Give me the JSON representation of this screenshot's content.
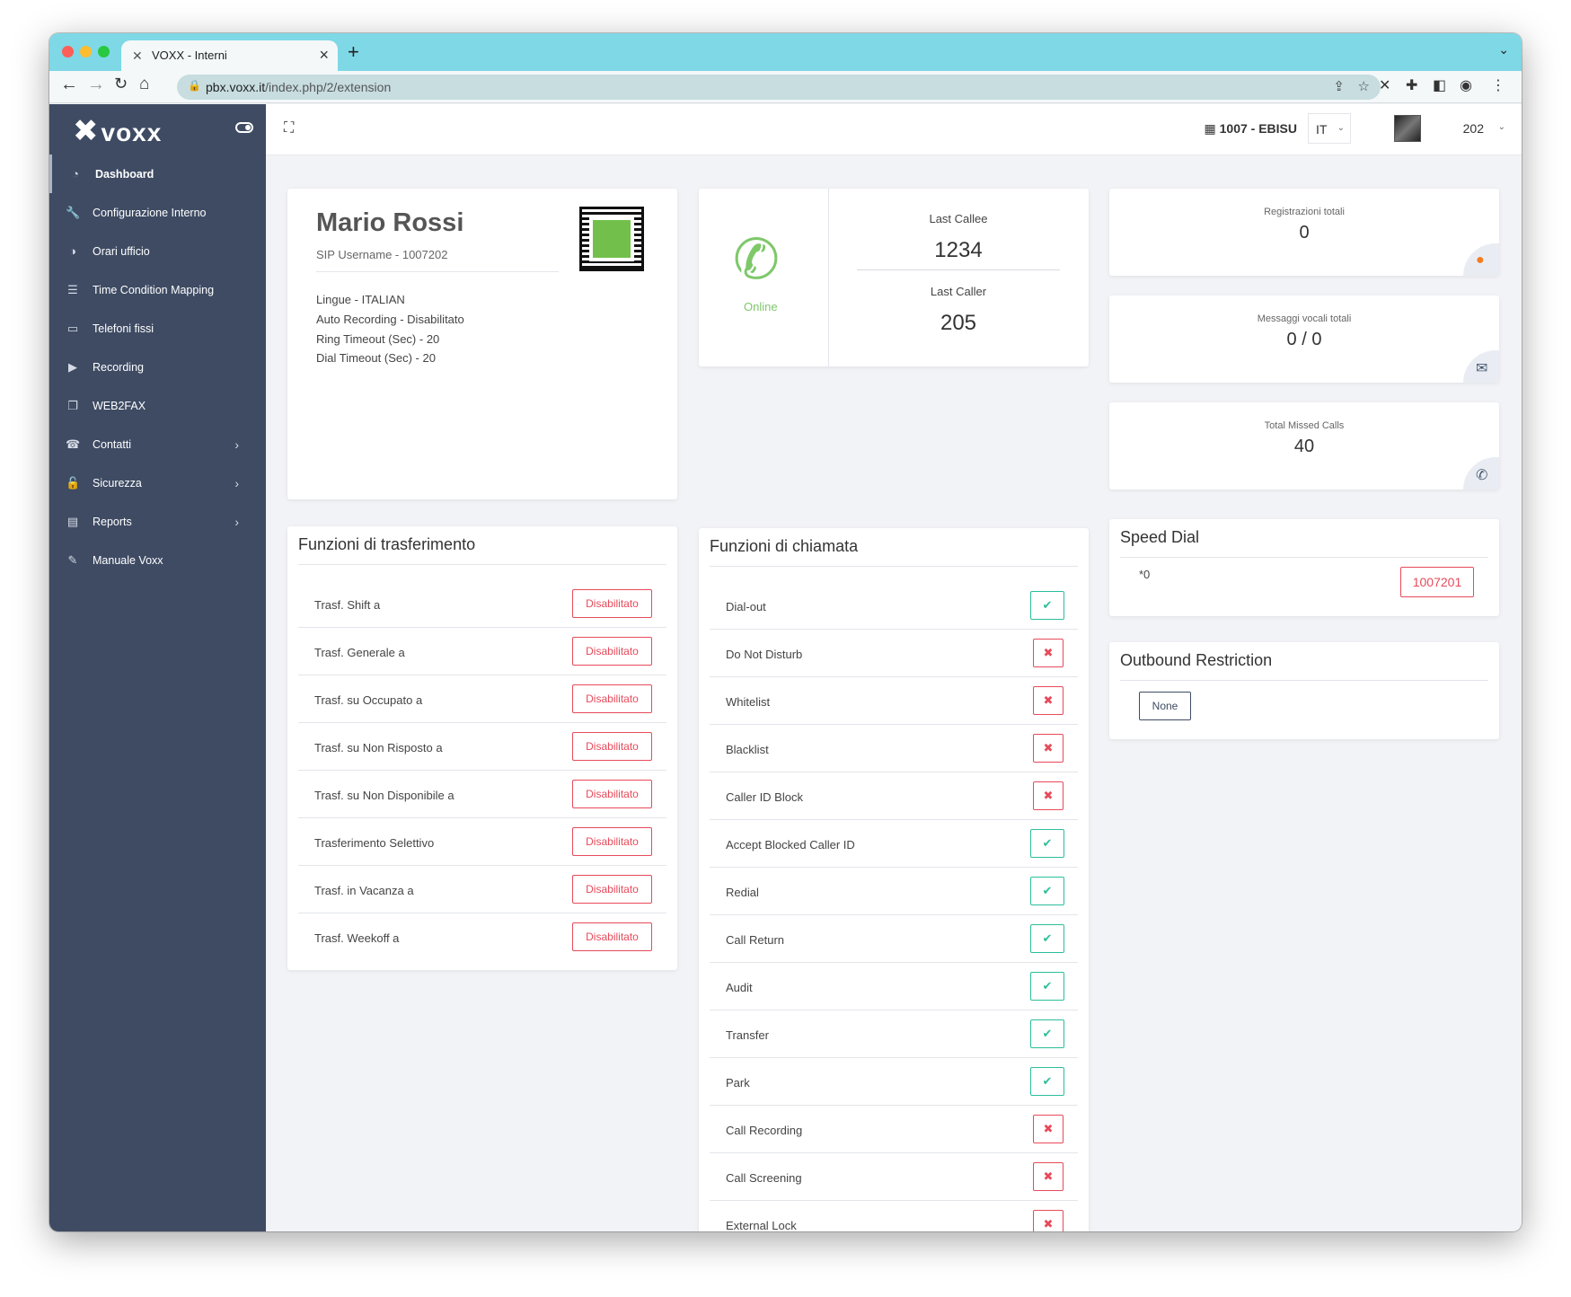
{
  "browser": {
    "tab_title": "VOXX - Interni",
    "url_domain": "pbx.voxx.it",
    "url_path": "/index.php/2/extension"
  },
  "sidebar": {
    "logo": "voxx",
    "items": [
      {
        "label": "Dashboard",
        "icon": "dashboard-icon"
      },
      {
        "label": "Configurazione Interno",
        "icon": "wrench-icon"
      },
      {
        "label": "Orari ufficio",
        "icon": "half-circle-icon"
      },
      {
        "label": "Time Condition Mapping",
        "icon": "list-icon"
      },
      {
        "label": "Telefoni fissi",
        "icon": "monitor-icon"
      },
      {
        "label": "Recording",
        "icon": "play-icon"
      },
      {
        "label": "WEB2FAX",
        "icon": "copy-icon"
      },
      {
        "label": "Contatti",
        "icon": "phone-square-icon"
      },
      {
        "label": "Sicurezza",
        "icon": "lock-icon"
      },
      {
        "label": "Reports",
        "icon": "file-icon"
      },
      {
        "label": "Manuale Voxx",
        "icon": "edit-icon"
      }
    ]
  },
  "header": {
    "company": "1007 - EBISU",
    "lang": "IT",
    "ext": "202"
  },
  "profile": {
    "name": "Mario Rossi",
    "sip": "SIP Username  -  1007202",
    "props": [
      "Lingue - ITALIAN",
      "Auto Recording - Disabilitato",
      "Ring Timeout (Sec) - 20",
      "Dial Timeout (Sec) - 20"
    ]
  },
  "status": {
    "online": "Online",
    "last_callee_label": "Last Callee",
    "last_callee": "1234",
    "last_caller_label": "Last Caller",
    "last_caller": "205"
  },
  "stats": [
    {
      "label": "Registrazioni totali",
      "value": "0",
      "icon": "play-circle-icon",
      "color": "#f47c20"
    },
    {
      "label": "Messaggi vocali totali",
      "value": "0 / 0",
      "icon": "envelope-icon",
      "color": "#4a5a72"
    },
    {
      "label": "Total Missed Calls",
      "value": "40",
      "icon": "phone-icon",
      "color": "#4a5a72"
    }
  ],
  "transfer": {
    "title": "Funzioni di trasferimento",
    "rows": [
      {
        "label": "Trasf. Shift a",
        "status": "Disabilitato"
      },
      {
        "label": "Trasf. Generale a",
        "status": "Disabilitato"
      },
      {
        "label": "Trasf. su Occupato a",
        "status": "Disabilitato"
      },
      {
        "label": "Trasf. su Non Risposto a",
        "status": "Disabilitato"
      },
      {
        "label": "Trasf. su Non Disponibile a",
        "status": "Disabilitato"
      },
      {
        "label": "Trasferimento Selettivo",
        "status": "Disabilitato"
      },
      {
        "label": "Trasf. in Vacanza a",
        "status": "Disabilitato"
      },
      {
        "label": "Trasf. Weekoff a",
        "status": "Disabilitato"
      }
    ]
  },
  "call_features": {
    "title": "Funzioni di chiamata",
    "rows": [
      {
        "label": "Dial-out",
        "enabled": true
      },
      {
        "label": "Do Not Disturb",
        "enabled": false
      },
      {
        "label": "Whitelist",
        "enabled": false
      },
      {
        "label": "Blacklist",
        "enabled": false
      },
      {
        "label": "Caller ID Block",
        "enabled": false
      },
      {
        "label": "Accept Blocked Caller ID",
        "enabled": true
      },
      {
        "label": "Redial",
        "enabled": true
      },
      {
        "label": "Call Return",
        "enabled": true
      },
      {
        "label": "Audit",
        "enabled": true
      },
      {
        "label": "Transfer",
        "enabled": true
      },
      {
        "label": "Park",
        "enabled": true
      },
      {
        "label": "Call Recording",
        "enabled": false
      },
      {
        "label": "Call Screening",
        "enabled": false
      },
      {
        "label": "External Lock",
        "enabled": false
      }
    ]
  },
  "speed_dial": {
    "title": "Speed Dial",
    "key": "*0",
    "value": "1007201"
  },
  "outbound": {
    "title": "Outbound Restriction",
    "value": "None"
  }
}
